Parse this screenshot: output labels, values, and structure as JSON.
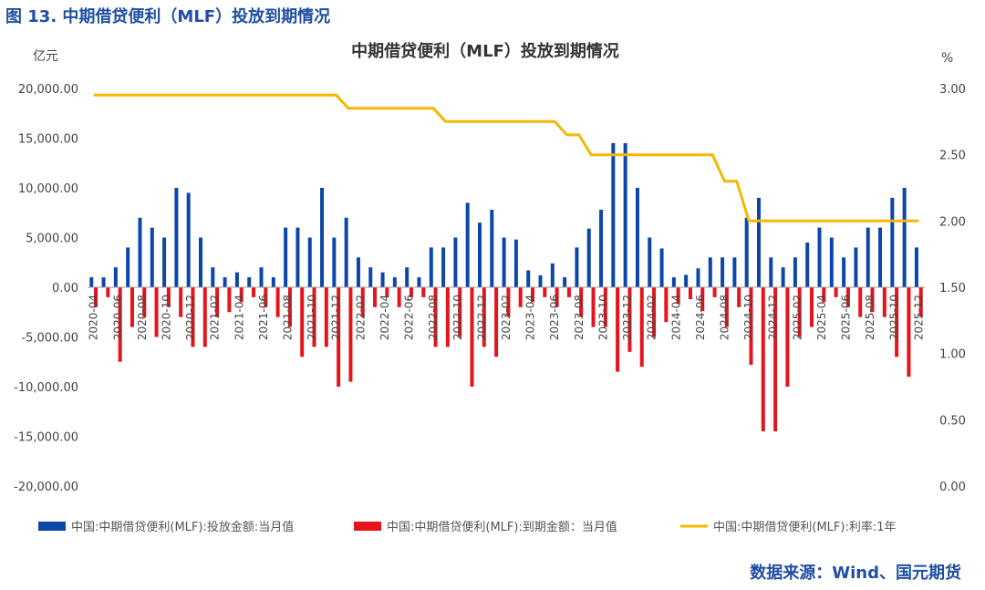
{
  "figure_caption": "图 13. 中期借贷便利（MLF）投放到期情况",
  "source_note": "数据来源：Wind、国元期货",
  "colors": {
    "release": "#0a47a8",
    "maturity": "#e5131a",
    "rate": "#f5b800",
    "caption": "#1f4fa1",
    "axis": "#9e9e9e"
  },
  "chart_data": {
    "type": "bar",
    "title": "中期借贷便利（MLF）投放到期情况",
    "left_axis_unit": "亿元",
    "right_axis_unit": "%",
    "left_ylim": [
      -20000,
      20000
    ],
    "left_ticks": [
      "20,000.00",
      "15,000.00",
      "10,000.00",
      "5,000.00",
      "0.00",
      "-5,000.00",
      "-10,000.00",
      "-15,000.00",
      "-20,000.00"
    ],
    "right_ylim": [
      0,
      3
    ],
    "right_ticks": [
      "3.00",
      "2.50",
      "2.00",
      "1.50",
      "1.00",
      "0.50",
      "0.00"
    ],
    "grid": false,
    "legend_position": "bottom",
    "x_tick_labels": [
      "2020-04",
      "2020-06",
      "2020-08",
      "2020-10",
      "2020-12",
      "2021-02",
      "2021-04",
      "2021-06",
      "2021-08",
      "2021-10",
      "2021-12",
      "2022-02",
      "2022-04",
      "2022-06",
      "2022-08",
      "2022-10",
      "2022-12",
      "2023-02",
      "2023-04",
      "2023-06",
      "2023-08",
      "2023-10",
      "2023-12",
      "2024-02",
      "2024-04",
      "2024-06",
      "2024-08",
      "2024-10",
      "2024-12",
      "2025-02",
      "2025-04",
      "2025-06",
      "2025-08",
      "2025-10",
      "2025-12"
    ],
    "categories": [
      "2020-04",
      "2020-05",
      "2020-06",
      "2020-07",
      "2020-08",
      "2020-09",
      "2020-10",
      "2020-11",
      "2020-12",
      "2021-01",
      "2021-02",
      "2021-03",
      "2021-04",
      "2021-05",
      "2021-06",
      "2021-07",
      "2021-08",
      "2021-09",
      "2021-10",
      "2021-11",
      "2021-12",
      "2022-01",
      "2022-02",
      "2022-03",
      "2022-04",
      "2022-05",
      "2022-06",
      "2022-07",
      "2022-08",
      "2022-09",
      "2022-10",
      "2022-11",
      "2022-12",
      "2023-01",
      "2023-02",
      "2023-03",
      "2023-04",
      "2023-05",
      "2023-06",
      "2023-07",
      "2023-08",
      "2023-09",
      "2023-10",
      "2023-11",
      "2023-12",
      "2024-01",
      "2024-02",
      "2024-03",
      "2024-04",
      "2024-05",
      "2024-06",
      "2024-07",
      "2024-08",
      "2024-09",
      "2024-10",
      "2024-11",
      "2024-12",
      "2025-01",
      "2025-02",
      "2025-03",
      "2025-04",
      "2025-05",
      "2025-06",
      "2025-07",
      "2025-08",
      "2025-09",
      "2025-10",
      "2025-11",
      "2025-12"
    ],
    "series": [
      {
        "name": "中国:中期借贷便利(MLF):投放金额:当月值",
        "kind": "bar",
        "values": [
          1000,
          1000,
          2000,
          4000,
          7000,
          6000,
          5000,
          10000,
          9500,
          5000,
          2000,
          1000,
          1500,
          1000,
          2000,
          1000,
          6000,
          6000,
          5000,
          10000,
          5000,
          7000,
          3000,
          2000,
          1500,
          1000,
          2000,
          1000,
          4000,
          4000,
          5000,
          8500,
          6500,
          7800,
          5000,
          4800,
          1700,
          1200,
          2400,
          1000,
          4000,
          5900,
          7800,
          14500,
          14500,
          10000,
          5000,
          3900,
          1000,
          1250,
          1900,
          3000,
          3000,
          3000,
          7000,
          9000,
          3000,
          2000,
          3000,
          4500,
          6000,
          5000,
          3000,
          4000,
          6000,
          6000,
          9000,
          10000,
          4000
        ]
      },
      {
        "name": "中国:中期借贷便利(MLF):到期金额：当月值",
        "kind": "bar",
        "values": [
          -2000,
          -1000,
          -7500,
          -4000,
          -3000,
          -5000,
          -2000,
          -3000,
          -6000,
          -6000,
          -3000,
          -2500,
          -1500,
          -1000,
          -2000,
          -3000,
          -4000,
          -7000,
          -6000,
          -6000,
          -10000,
          -9500,
          -3000,
          -2000,
          -1000,
          -2000,
          -1000,
          -1000,
          -6000,
          -6000,
          -5000,
          -10000,
          -6000,
          -7000,
          -3000,
          -2000,
          -1500,
          -1000,
          -2000,
          -1000,
          -3000,
          -4000,
          -4000,
          -8500,
          -6500,
          -8000,
          -5000,
          -3500,
          -1700,
          -1200,
          -2400,
          -1000,
          -4000,
          -2000,
          -7800,
          -14500,
          -14500,
          -10000,
          -5000,
          -4000,
          -1500,
          -1000,
          -2000,
          -3000,
          -2500,
          -3000,
          -7000,
          -9000,
          -3000
        ]
      },
      {
        "name": "中国:中期借贷便利(MLF):利率:1年",
        "kind": "line",
        "values": [
          2.95,
          2.95,
          2.95,
          2.95,
          2.95,
          2.95,
          2.95,
          2.95,
          2.95,
          2.95,
          2.95,
          2.95,
          2.95,
          2.95,
          2.95,
          2.95,
          2.95,
          2.95,
          2.95,
          2.95,
          2.95,
          2.85,
          2.85,
          2.85,
          2.85,
          2.85,
          2.85,
          2.85,
          2.85,
          2.75,
          2.75,
          2.75,
          2.75,
          2.75,
          2.75,
          2.75,
          2.75,
          2.75,
          2.75,
          2.65,
          2.65,
          2.5,
          2.5,
          2.5,
          2.5,
          2.5,
          2.5,
          2.5,
          2.5,
          2.5,
          2.5,
          2.5,
          2.3,
          2.3,
          2.0,
          2.0,
          2.0,
          2.0,
          2.0,
          2.0,
          2.0,
          2.0,
          2.0,
          2.0,
          2.0,
          2.0,
          2.0,
          2.0,
          2.0
        ]
      }
    ]
  }
}
